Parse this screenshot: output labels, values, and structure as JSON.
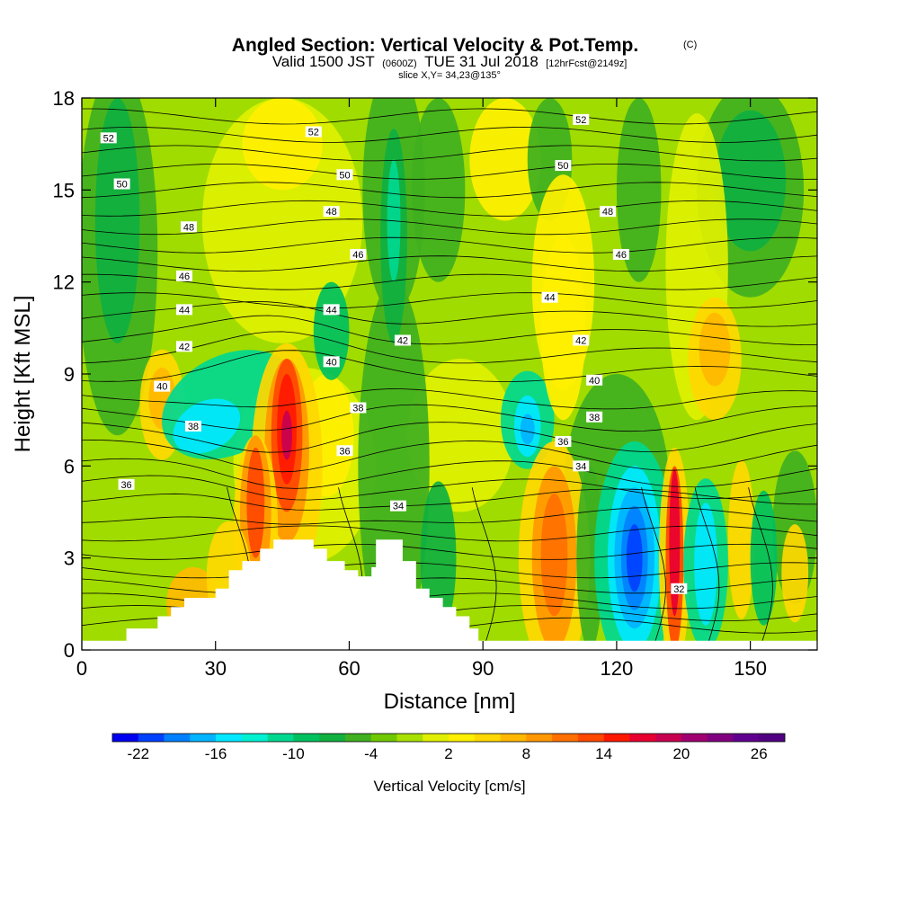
{
  "chart_data": {
    "type": "heatmap",
    "title": "Angled Section: Vertical Velocity & Pot.Temp.",
    "title_units": "(C)",
    "subtitle": {
      "valid_prefix": "Valid 1500 JST",
      "zulu": "(0600Z)",
      "date": "TUE 31 Jul 2018",
      "forecast": "[12hrFcst@2149z]"
    },
    "slice_info": "slice X,Y= 34,23@135°",
    "xlabel": "Distance [nm]",
    "ylabel": "Height [Kft MSL]",
    "xlim": [
      0,
      165
    ],
    "ylim": [
      0,
      18
    ],
    "x_ticks": [
      "0",
      "30",
      "60",
      "90",
      "120",
      "150"
    ],
    "y_ticks": [
      "0",
      "3",
      "6",
      "9",
      "12",
      "15",
      "18"
    ],
    "colorbar": {
      "label": "Vertical Velocity [cm/s]",
      "tick_labels": [
        "-22",
        "-16",
        "-10",
        "-4",
        "2",
        "8",
        "14",
        "20",
        "26"
      ],
      "range": [
        -24,
        28
      ],
      "step": 2,
      "colors": [
        "#0000f0",
        "#0040ff",
        "#0080ff",
        "#00b4ff",
        "#00e8ff",
        "#00f0d0",
        "#00d890",
        "#00c060",
        "#10b040",
        "#40b020",
        "#70c800",
        "#a8e000",
        "#e0f000",
        "#fff000",
        "#ffd800",
        "#ffb800",
        "#ff9800",
        "#ff7000",
        "#ff4800",
        "#ff1800",
        "#e80030",
        "#c80050",
        "#a00070",
        "#800080",
        "#600090",
        "#500080"
      ]
    },
    "potential_temperature_labels": [
      {
        "text": "52",
        "x": 6,
        "y": 16.7
      },
      {
        "text": "52",
        "x": 52,
        "y": 16.9
      },
      {
        "text": "52",
        "x": 112,
        "y": 17.3
      },
      {
        "text": "50",
        "x": 9,
        "y": 15.2
      },
      {
        "text": "50",
        "x": 59,
        "y": 15.5
      },
      {
        "text": "50",
        "x": 108,
        "y": 15.8
      },
      {
        "text": "48",
        "x": 24,
        "y": 13.8
      },
      {
        "text": "48",
        "x": 56,
        "y": 14.3
      },
      {
        "text": "48",
        "x": 118,
        "y": 14.3
      },
      {
        "text": "46",
        "x": 23,
        "y": 12.2
      },
      {
        "text": "46",
        "x": 62,
        "y": 12.9
      },
      {
        "text": "46",
        "x": 121,
        "y": 12.9
      },
      {
        "text": "44",
        "x": 23,
        "y": 11.1
      },
      {
        "text": "44",
        "x": 56,
        "y": 11.1
      },
      {
        "text": "44",
        "x": 105,
        "y": 11.5
      },
      {
        "text": "42",
        "x": 23,
        "y": 9.9
      },
      {
        "text": "42",
        "x": 72,
        "y": 10.1
      },
      {
        "text": "42",
        "x": 112,
        "y": 10.1
      },
      {
        "text": "40",
        "x": 18,
        "y": 8.6
      },
      {
        "text": "40",
        "x": 56,
        "y": 9.4
      },
      {
        "text": "40",
        "x": 115,
        "y": 8.8
      },
      {
        "text": "38",
        "x": 25,
        "y": 7.3
      },
      {
        "text": "38",
        "x": 62,
        "y": 7.9
      },
      {
        "text": "38",
        "x": 115,
        "y": 7.6
      },
      {
        "text": "36",
        "x": 10,
        "y": 5.4
      },
      {
        "text": "36",
        "x": 59,
        "y": 6.5
      },
      {
        "text": "36",
        "x": 108,
        "y": 6.8
      },
      {
        "text": "34",
        "x": 71,
        "y": 4.7
      },
      {
        "text": "34",
        "x": 112,
        "y": 6.0
      },
      {
        "text": "32",
        "x": 134,
        "y": 2.0
      }
    ],
    "terrain_profile": [
      [
        0,
        0.3
      ],
      [
        10,
        0.3
      ],
      [
        10,
        0.7
      ],
      [
        17,
        0.7
      ],
      [
        17,
        1.1
      ],
      [
        20,
        1.1
      ],
      [
        20,
        1.4
      ],
      [
        23,
        1.4
      ],
      [
        23,
        1.7
      ],
      [
        30,
        1.7
      ],
      [
        30,
        2.0
      ],
      [
        33,
        2.0
      ],
      [
        33,
        2.6
      ],
      [
        36,
        2.6
      ],
      [
        36,
        2.9
      ],
      [
        40,
        2.9
      ],
      [
        40,
        3.3
      ],
      [
        43,
        3.3
      ],
      [
        43,
        3.6
      ],
      [
        52,
        3.6
      ],
      [
        52,
        3.3
      ],
      [
        55,
        3.3
      ],
      [
        55,
        2.9
      ],
      [
        59,
        2.9
      ],
      [
        59,
        2.6
      ],
      [
        62,
        2.6
      ],
      [
        62,
        2.4
      ],
      [
        65,
        2.4
      ],
      [
        65,
        2.7
      ],
      [
        66,
        2.7
      ],
      [
        66,
        3.6
      ],
      [
        72,
        3.6
      ],
      [
        72,
        2.9
      ],
      [
        75,
        2.9
      ],
      [
        75,
        2.0
      ],
      [
        78,
        2.0
      ],
      [
        78,
        1.7
      ],
      [
        81,
        1.7
      ],
      [
        81,
        1.4
      ],
      [
        84,
        1.4
      ],
      [
        84,
        1.1
      ],
      [
        87,
        1.1
      ],
      [
        87,
        0.7
      ],
      [
        89,
        0.7
      ],
      [
        89,
        0.3
      ],
      [
        165,
        0.3
      ]
    ],
    "grid": false,
    "legend": "bottom"
  }
}
